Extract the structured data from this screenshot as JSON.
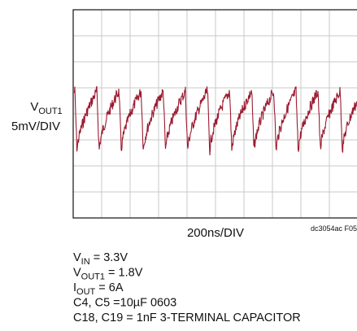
{
  "y_label": {
    "main": "V",
    "sub": "OUT1",
    "scale": "5mV/DIV"
  },
  "x_label": "200ns/DIV",
  "figure_id": "dc3054ac F05",
  "notes": [
    {
      "main": "V",
      "sub": "IN",
      "rest": " = 3.3V"
    },
    {
      "main": "V",
      "sub": "OUT1",
      "rest": " = 1.8V"
    },
    {
      "main": "I",
      "sub": "OUT",
      "rest": " = 6A"
    },
    {
      "main": "C4, C5 =10µF 0603",
      "sub": "",
      "rest": ""
    },
    {
      "main": "C18, C19 = 1nF 3-TERMINAL CAPACITOR",
      "sub": "",
      "rest": ""
    }
  ]
}
